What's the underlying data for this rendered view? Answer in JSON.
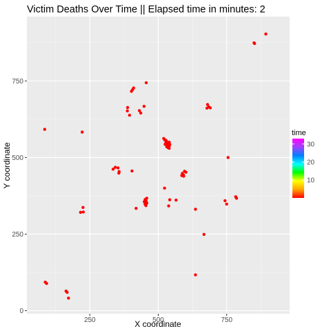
{
  "chart_data": {
    "type": "scatter",
    "title": "Victim Deaths Over Time || Elapsed time in minutes:  2",
    "xlabel": "X coordinate",
    "ylabel": "Y coordinate",
    "xlim": [
      20,
      980
    ],
    "ylim": [
      -10,
      960
    ],
    "x_ticks": [
      250,
      500,
      750
    ],
    "y_ticks": [
      0,
      250,
      500,
      750
    ],
    "grid": true,
    "point_color": "#ff0000",
    "panel_color": "#ebebeb",
    "legend": {
      "title": "time",
      "position": "right",
      "range": [
        0,
        33
      ],
      "ticks": [
        10,
        20,
        30
      ],
      "colors": [
        "#ff0000",
        "#ffa500",
        "#ffff00",
        "#00ff00",
        "#00ffff",
        "#0080ff",
        "#a040ff",
        "#ff00ff"
      ]
    },
    "points": [
      [
        893,
        903
      ],
      [
        850,
        874
      ],
      [
        852,
        872
      ],
      [
        456,
        744
      ],
      [
        410,
        727
      ],
      [
        406,
        721
      ],
      [
        402,
        716
      ],
      [
        388,
        663
      ],
      [
        387,
        652
      ],
      [
        395,
        638
      ],
      [
        431,
        653
      ],
      [
        436,
        645
      ],
      [
        448,
        667
      ],
      [
        680,
        673
      ],
      [
        678,
        661
      ],
      [
        690,
        662
      ],
      [
        685,
        665
      ],
      [
        85,
        592
      ],
      [
        222,
        583
      ],
      [
        520,
        562
      ],
      [
        524,
        557
      ],
      [
        530,
        553
      ],
      [
        528,
        548
      ],
      [
        535,
        545
      ],
      [
        540,
        550
      ],
      [
        525,
        543
      ],
      [
        533,
        540
      ],
      [
        538,
        537
      ],
      [
        531,
        535
      ],
      [
        536,
        532
      ],
      [
        540,
        530
      ],
      [
        542,
        543
      ],
      [
        528,
        556
      ],
      [
        534,
        538
      ],
      [
        541,
        539
      ],
      [
        755,
        500
      ],
      [
        335,
        462
      ],
      [
        343,
        468
      ],
      [
        353,
        466
      ],
      [
        357,
        454
      ],
      [
        356,
        449
      ],
      [
        404,
        456
      ],
      [
        596,
        455
      ],
      [
        601,
        452
      ],
      [
        588,
        448
      ],
      [
        592,
        443
      ],
      [
        586,
        441
      ],
      [
        593,
        439
      ],
      [
        523,
        400
      ],
      [
        542,
        362
      ],
      [
        565,
        361
      ],
      [
        538,
        342
      ],
      [
        458,
        367
      ],
      [
        452,
        363
      ],
      [
        456,
        357
      ],
      [
        450,
        354
      ],
      [
        458,
        351
      ],
      [
        452,
        347
      ],
      [
        455,
        343
      ],
      [
        449,
        356
      ],
      [
        419,
        334
      ],
      [
        636,
        331
      ],
      [
        744,
        359
      ],
      [
        750,
        348
      ],
      [
        783,
        372
      ],
      [
        786,
        367
      ],
      [
        225,
        337
      ],
      [
        216,
        321
      ],
      [
        226,
        322
      ],
      [
        667,
        249
      ],
      [
        636,
        117
      ],
      [
        87,
        93
      ],
      [
        92,
        89
      ],
      [
        163,
        64
      ],
      [
        167,
        60
      ],
      [
        172,
        41
      ]
    ]
  }
}
